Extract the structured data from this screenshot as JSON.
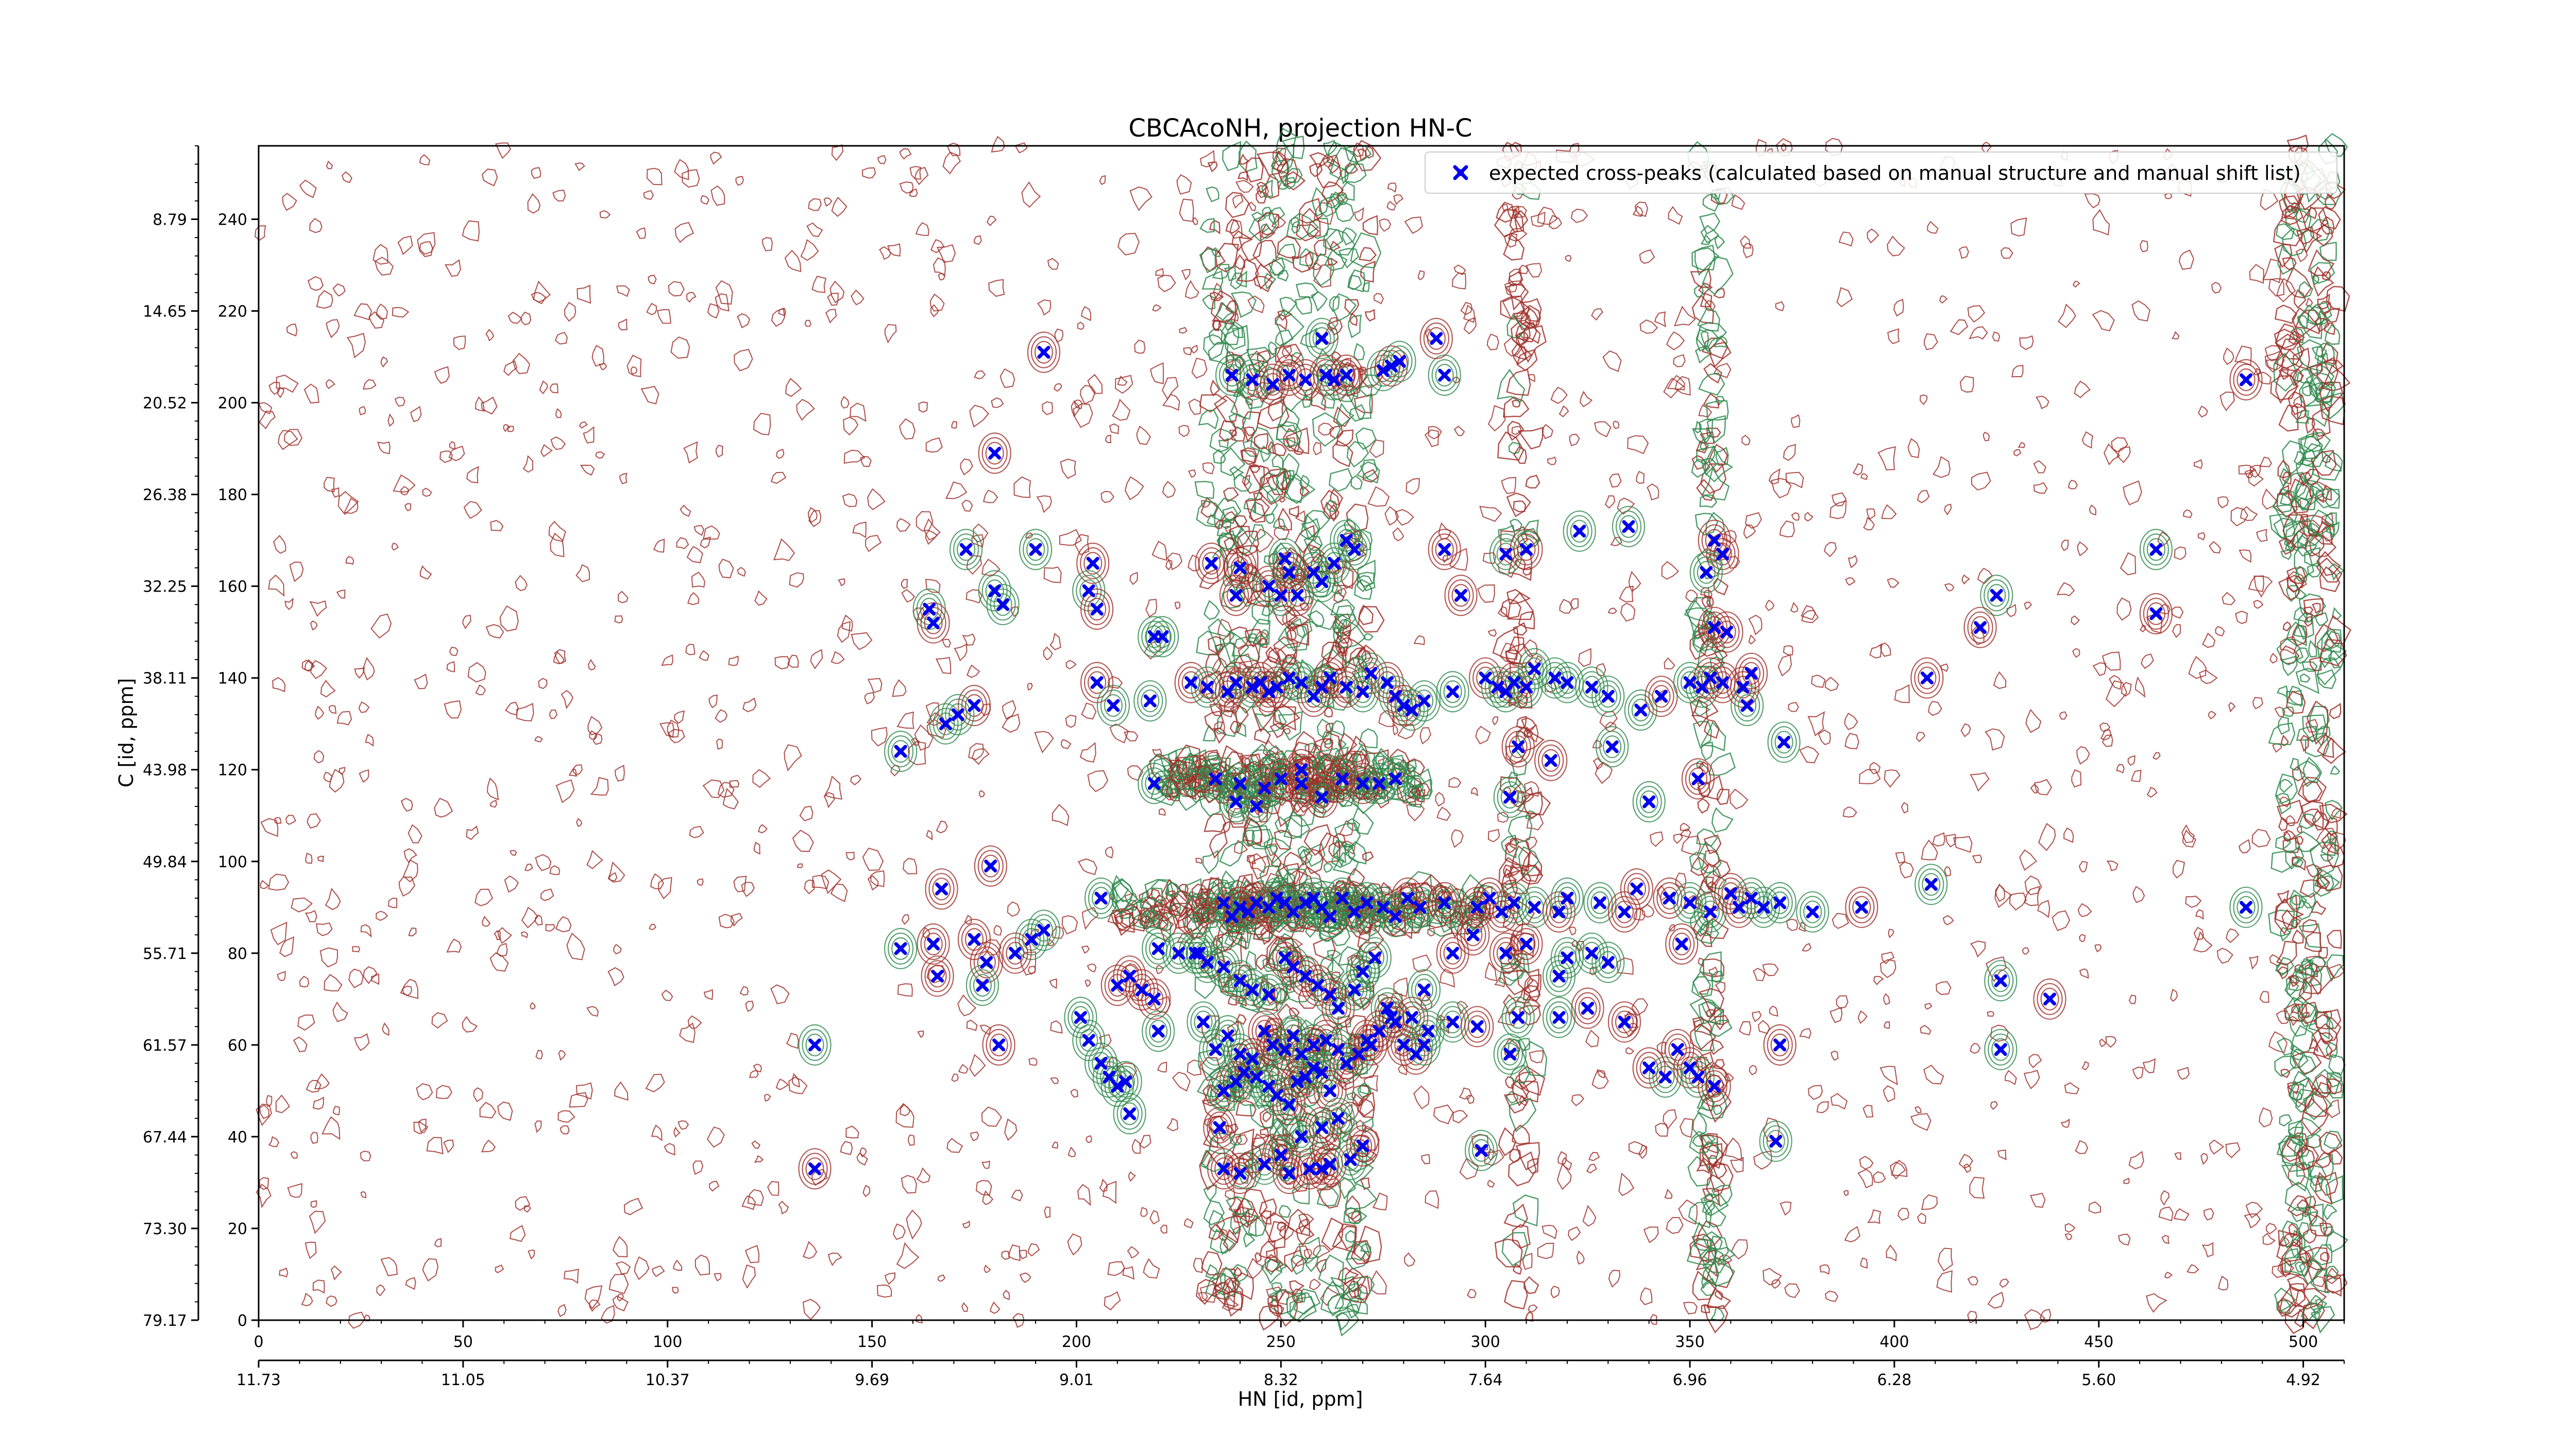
{
  "chart_data": {
    "type": "scatter",
    "title": "CBCAcoNH, projection HN-C",
    "xlabel": "HN [id, ppm]",
    "ylabel": "C [id, ppm]",
    "xlim": [
      0,
      510
    ],
    "ylim": [
      0,
      256
    ],
    "x_ticks": [
      0,
      50,
      100,
      150,
      200,
      250,
      300,
      350,
      400,
      450,
      500
    ],
    "y_ticks": [
      0,
      20,
      40,
      60,
      80,
      100,
      120,
      140,
      160,
      180,
      200,
      220,
      240
    ],
    "secondary_x_ticks": [
      "11.73",
      "11.05",
      "10.37",
      "9.69",
      "9.01",
      "8.32",
      "7.64",
      "6.96",
      "6.28",
      "5.60",
      "4.92"
    ],
    "secondary_y_ticks": [
      "79.17",
      "73.30",
      "67.44",
      "61.57",
      "55.71",
      "49.84",
      "43.98",
      "38.11",
      "32.25",
      "26.38",
      "20.52",
      "14.65",
      "8.79"
    ],
    "grid": false,
    "legend_position": "top-right",
    "colors": {
      "positive_contour": "#a0302a",
      "negative_contour": "#2f8a4e",
      "marker": "#0000ee",
      "axis": "#000000"
    },
    "series": [
      {
        "name": "expected cross-peaks (calculated based on manual structure and manual shift list)",
        "marker": "x",
        "points": [
          [
            192,
            211
          ],
          [
            238,
            206
          ],
          [
            243,
            205
          ],
          [
            248,
            204
          ],
          [
            252,
            206
          ],
          [
            256,
            205
          ],
          [
            261,
            206
          ],
          [
            263,
            205
          ],
          [
            266,
            206
          ],
          [
            275,
            207
          ],
          [
            290,
            206
          ],
          [
            277,
            208
          ],
          [
            260,
            214
          ],
          [
            288,
            214
          ],
          [
            279,
            209
          ],
          [
            180,
            189
          ],
          [
            173,
            168
          ],
          [
            180,
            159
          ],
          [
            190,
            168
          ],
          [
            204,
            165
          ],
          [
            203,
            159
          ],
          [
            205,
            155
          ],
          [
            219,
            149
          ],
          [
            221,
            149
          ],
          [
            164,
            155
          ],
          [
            165,
            152
          ],
          [
            182,
            156
          ],
          [
            233,
            165
          ],
          [
            239,
            158
          ],
          [
            240,
            164
          ],
          [
            247,
            160
          ],
          [
            250,
            158
          ],
          [
            251,
            166
          ],
          [
            252,
            163
          ],
          [
            254,
            158
          ],
          [
            258,
            163
          ],
          [
            260,
            161
          ],
          [
            263,
            165
          ],
          [
            266,
            170
          ],
          [
            268,
            168
          ],
          [
            290,
            168
          ],
          [
            294,
            158
          ],
          [
            305,
            167
          ],
          [
            310,
            168
          ],
          [
            323,
            172
          ],
          [
            335,
            173
          ],
          [
            356,
            170
          ],
          [
            358,
            167
          ],
          [
            354,
            163
          ],
          [
            356,
            151
          ],
          [
            359,
            150
          ],
          [
            464,
            168
          ],
          [
            464,
            154
          ],
          [
            425,
            158
          ],
          [
            421,
            151
          ],
          [
            205,
            139
          ],
          [
            209,
            134
          ],
          [
            218,
            135
          ],
          [
            228,
            139
          ],
          [
            232,
            138
          ],
          [
            237,
            137
          ],
          [
            239,
            139
          ],
          [
            243,
            138
          ],
          [
            245,
            139
          ],
          [
            247,
            137
          ],
          [
            249,
            138
          ],
          [
            252,
            140
          ],
          [
            255,
            139
          ],
          [
            258,
            136
          ],
          [
            260,
            138
          ],
          [
            262,
            140
          ],
          [
            266,
            138
          ],
          [
            270,
            137
          ],
          [
            272,
            141
          ],
          [
            276,
            139
          ],
          [
            278,
            136
          ],
          [
            280,
            134
          ],
          [
            282,
            133
          ],
          [
            285,
            135
          ],
          [
            292,
            137
          ],
          [
            300,
            140
          ],
          [
            303,
            138
          ],
          [
            305,
            137
          ],
          [
            307,
            139
          ],
          [
            310,
            138
          ],
          [
            312,
            142
          ],
          [
            317,
            140
          ],
          [
            320,
            139
          ],
          [
            326,
            138
          ],
          [
            330,
            136
          ],
          [
            338,
            133
          ],
          [
            343,
            136
          ],
          [
            350,
            139
          ],
          [
            353,
            138
          ],
          [
            355,
            140
          ],
          [
            358,
            139
          ],
          [
            363,
            138
          ],
          [
            364,
            134
          ],
          [
            365,
            141
          ],
          [
            373,
            126
          ],
          [
            408,
            140
          ],
          [
            409,
            95
          ],
          [
            486,
            205
          ],
          [
            486,
            90
          ],
          [
            175,
            134
          ],
          [
            171,
            132
          ],
          [
            168,
            130
          ],
          [
            157,
            124
          ],
          [
            219,
            117
          ],
          [
            234,
            118
          ],
          [
            240,
            117
          ],
          [
            246,
            116
          ],
          [
            250,
            118
          ],
          [
            255,
            117
          ],
          [
            265,
            118
          ],
          [
            270,
            117
          ],
          [
            274,
            117
          ],
          [
            278,
            118
          ],
          [
            239,
            113
          ],
          [
            244,
            112
          ],
          [
            255,
            120
          ],
          [
            260,
            114
          ],
          [
            306,
            114
          ],
          [
            331,
            125
          ],
          [
            340,
            113
          ],
          [
            352,
            118
          ],
          [
            316,
            122
          ],
          [
            308,
            125
          ],
          [
            179,
            99
          ],
          [
            167,
            94
          ],
          [
            157,
            81
          ],
          [
            165,
            82
          ],
          [
            175,
            83
          ],
          [
            178,
            78
          ],
          [
            189,
            83
          ],
          [
            192,
            85
          ],
          [
            185,
            80
          ],
          [
            206,
            92
          ],
          [
            220,
            81
          ],
          [
            225,
            80
          ],
          [
            230,
            80
          ],
          [
            236,
            91
          ],
          [
            238,
            88
          ],
          [
            240,
            90
          ],
          [
            242,
            89
          ],
          [
            244,
            91
          ],
          [
            247,
            90
          ],
          [
            249,
            92
          ],
          [
            251,
            91
          ],
          [
            253,
            89
          ],
          [
            256,
            91
          ],
          [
            258,
            92
          ],
          [
            260,
            90
          ],
          [
            262,
            88
          ],
          [
            265,
            92
          ],
          [
            268,
            89
          ],
          [
            271,
            91
          ],
          [
            275,
            90
          ],
          [
            278,
            88
          ],
          [
            281,
            92
          ],
          [
            284,
            90
          ],
          [
            290,
            91
          ],
          [
            298,
            90
          ],
          [
            301,
            92
          ],
          [
            304,
            89
          ],
          [
            307,
            91
          ],
          [
            312,
            90
          ],
          [
            318,
            89
          ],
          [
            320,
            92
          ],
          [
            328,
            91
          ],
          [
            334,
            89
          ],
          [
            337,
            94
          ],
          [
            345,
            92
          ],
          [
            350,
            91
          ],
          [
            355,
            89
          ],
          [
            360,
            93
          ],
          [
            362,
            90
          ],
          [
            365,
            92
          ],
          [
            368,
            90
          ],
          [
            372,
            91
          ],
          [
            380,
            89
          ],
          [
            392,
            90
          ],
          [
            166,
            75
          ],
          [
            177,
            73
          ],
          [
            210,
            73
          ],
          [
            213,
            75
          ],
          [
            216,
            72
          ],
          [
            219,
            70
          ],
          [
            229,
            80
          ],
          [
            232,
            78
          ],
          [
            236,
            77
          ],
          [
            240,
            74
          ],
          [
            243,
            72
          ],
          [
            247,
            71
          ],
          [
            251,
            79
          ],
          [
            253,
            77
          ],
          [
            256,
            75
          ],
          [
            259,
            73
          ],
          [
            262,
            71
          ],
          [
            264,
            68
          ],
          [
            268,
            72
          ],
          [
            270,
            76
          ],
          [
            273,
            79
          ],
          [
            276,
            68
          ],
          [
            278,
            65
          ],
          [
            282,
            66
          ],
          [
            285,
            72
          ],
          [
            292,
            80
          ],
          [
            297,
            84
          ],
          [
            305,
            80
          ],
          [
            310,
            82
          ],
          [
            318,
            75
          ],
          [
            320,
            79
          ],
          [
            326,
            80
          ],
          [
            330,
            78
          ],
          [
            348,
            82
          ],
          [
            426,
            74
          ],
          [
            438,
            70
          ],
          [
            136,
            60
          ],
          [
            181,
            60
          ],
          [
            201,
            66
          ],
          [
            203,
            61
          ],
          [
            206,
            56
          ],
          [
            208,
            53
          ],
          [
            210,
            51
          ],
          [
            212,
            52
          ],
          [
            220,
            63
          ],
          [
            231,
            65
          ],
          [
            234,
            59
          ],
          [
            237,
            62
          ],
          [
            240,
            58
          ],
          [
            243,
            57
          ],
          [
            246,
            63
          ],
          [
            248,
            60
          ],
          [
            251,
            59
          ],
          [
            253,
            62
          ],
          [
            255,
            58
          ],
          [
            258,
            60
          ],
          [
            261,
            61
          ],
          [
            264,
            59
          ],
          [
            266,
            56
          ],
          [
            269,
            58
          ],
          [
            271,
            61
          ],
          [
            274,
            63
          ],
          [
            277,
            66
          ],
          [
            280,
            60
          ],
          [
            283,
            58
          ],
          [
            285,
            60
          ],
          [
            236,
            50
          ],
          [
            239,
            52
          ],
          [
            241,
            54
          ],
          [
            244,
            53
          ],
          [
            247,
            51
          ],
          [
            249,
            49
          ],
          [
            252,
            47
          ],
          [
            254,
            52
          ],
          [
            256,
            53
          ],
          [
            258,
            55
          ],
          [
            260,
            54
          ],
          [
            262,
            50
          ],
          [
            272,
            60
          ],
          [
            286,
            63
          ],
          [
            292,
            65
          ],
          [
            298,
            64
          ],
          [
            306,
            58
          ],
          [
            308,
            66
          ],
          [
            318,
            66
          ],
          [
            325,
            68
          ],
          [
            334,
            65
          ],
          [
            340,
            55
          ],
          [
            344,
            53
          ],
          [
            347,
            59
          ],
          [
            350,
            55
          ],
          [
            352,
            53
          ],
          [
            356,
            51
          ],
          [
            372,
            60
          ],
          [
            426,
            59
          ],
          [
            136,
            33
          ],
          [
            213,
            45
          ],
          [
            235,
            42
          ],
          [
            236,
            33
          ],
          [
            240,
            32
          ],
          [
            246,
            34
          ],
          [
            252,
            32
          ],
          [
            257,
            33
          ],
          [
            260,
            33
          ],
          [
            262,
            34
          ],
          [
            267,
            35
          ],
          [
            270,
            38
          ],
          [
            250,
            36
          ],
          [
            255,
            40
          ],
          [
            299,
            37
          ],
          [
            371,
            39
          ],
          [
            260,
            42
          ],
          [
            264,
            44
          ]
        ]
      }
    ]
  }
}
